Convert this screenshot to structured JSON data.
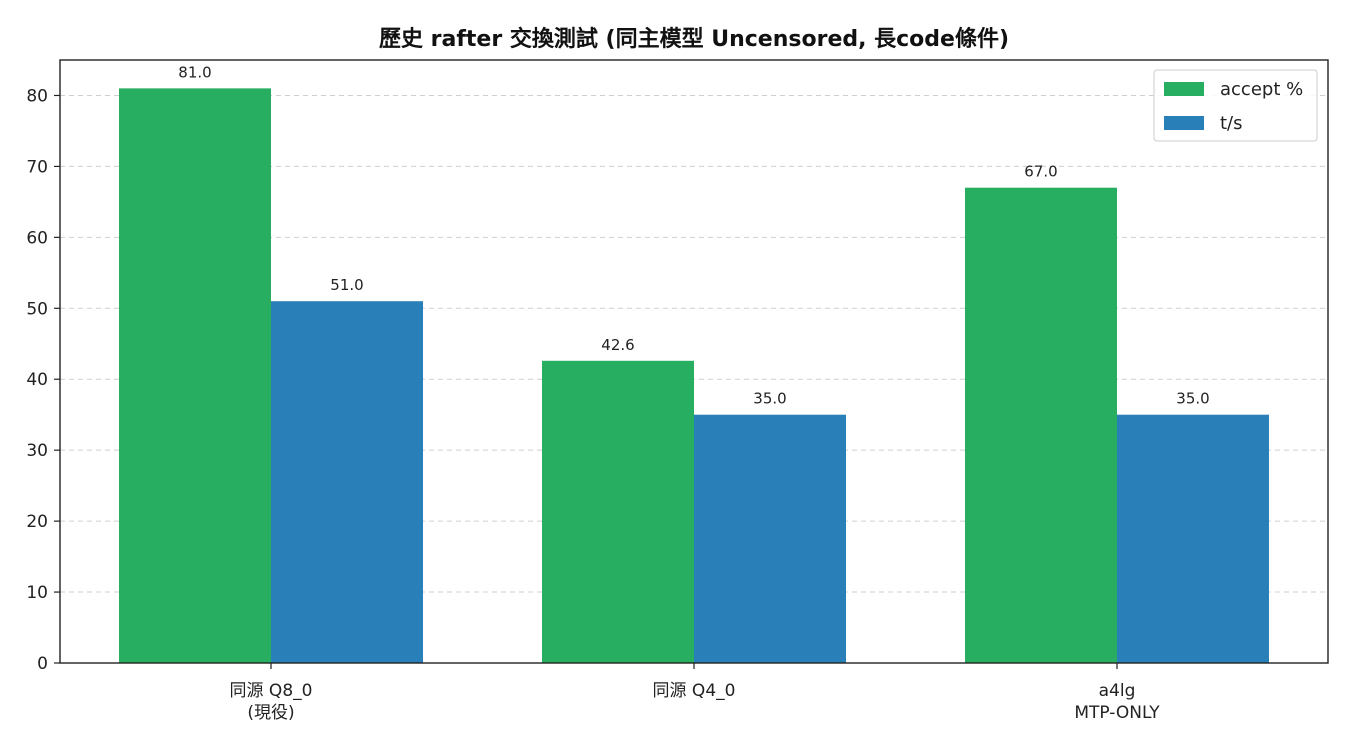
{
  "chart_data": {
    "type": "bar",
    "title": "歷史 rafter 交換測試 (同主模型 Uncensored, 長code條件)",
    "xlabel": "",
    "ylabel": "",
    "categories": [
      [
        "同源 Q8_0",
        "(現役)"
      ],
      [
        "同源 Q4_0"
      ],
      [
        "a4lg",
        "MTP-ONLY"
      ]
    ],
    "series": [
      {
        "name": "accept %",
        "color": "#27ae60",
        "values": [
          81.0,
          42.6,
          67.0
        ],
        "labels": [
          "81.0",
          "42.6",
          "67.0"
        ]
      },
      {
        "name": "t/s",
        "color": "#2980b9",
        "values": [
          51.0,
          35.0,
          35.0
        ],
        "labels": [
          "51.0",
          "35.0",
          "35.0"
        ]
      }
    ],
    "ylim": [
      0,
      85
    ],
    "yticks": [
      0,
      10,
      20,
      30,
      40,
      50,
      60,
      70,
      80
    ],
    "grid": true,
    "legend": "top-right"
  }
}
